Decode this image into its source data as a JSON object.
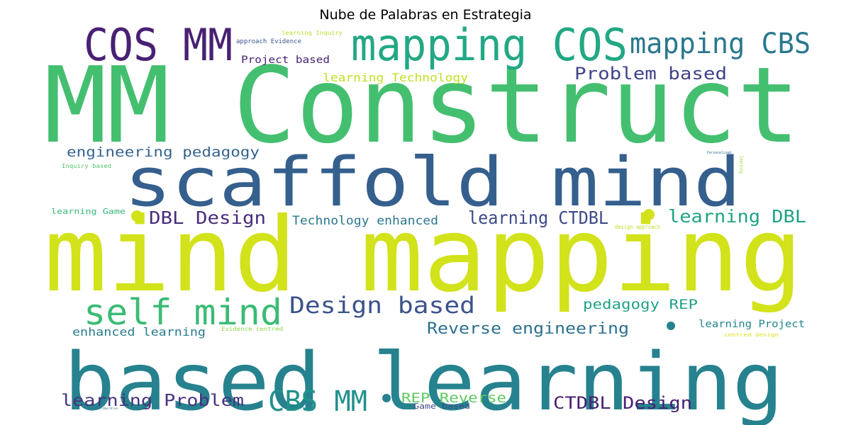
{
  "chart_data": {
    "type": "wordcloud",
    "title": "Nube de Palabras en Estrategia",
    "background": "#ffffff",
    "words": [
      {
        "text": "MM Construct",
        "color": "#44bf70"
      },
      {
        "text": "mind mapping",
        "color": "#d2e21b"
      },
      {
        "text": "based learning",
        "color": "#26828e"
      },
      {
        "text": "scaffold mind",
        "color": "#355f8d"
      },
      {
        "text": "mapping COS",
        "color": "#22a884"
      },
      {
        "text": "COS MM",
        "color": "#482173"
      },
      {
        "text": "mapping CBS",
        "color": "#2a788e"
      },
      {
        "text": "self mind",
        "color": "#3bbb75"
      },
      {
        "text": "Design based",
        "color": "#3b528b"
      },
      {
        "text": "CBS MM",
        "color": "#21918c"
      },
      {
        "text": "Problem based",
        "color": "#414487"
      },
      {
        "text": "learning CTDBL",
        "color": "#3e4a89"
      },
      {
        "text": "learning DBL",
        "color": "#20a386"
      },
      {
        "text": "DBL Design",
        "color": "#472d7b"
      },
      {
        "text": "Reverse engineering",
        "color": "#2c718e"
      },
      {
        "text": "CTDBL Design",
        "color": "#481f70"
      },
      {
        "text": "learning Problem",
        "color": "#46337e"
      },
      {
        "text": "engineering pedagogy",
        "color": "#33638d"
      },
      {
        "text": "pedagogy REP",
        "color": "#1fa187"
      },
      {
        "text": "REP Reverse",
        "color": "#5ec962"
      },
      {
        "text": "learning Technology",
        "color": "#c2df23"
      },
      {
        "text": "Technology enhanced",
        "color": "#2a788e"
      },
      {
        "text": "enhanced learning",
        "color": "#287c8e"
      },
      {
        "text": "Project based",
        "color": "#482475"
      },
      {
        "text": "learning Project",
        "color": "#24868e"
      },
      {
        "text": "Game based",
        "color": "#3e4989"
      },
      {
        "text": "learning Game",
        "color": "#35b779"
      },
      {
        "text": "Inquiry based",
        "color": "#50c46a"
      },
      {
        "text": "approach Evidence",
        "color": "#39568c"
      },
      {
        "text": "learning Inquiry",
        "color": "#b5de2b"
      },
      {
        "text": "Evidence centred",
        "color": "#8fd744"
      },
      {
        "text": "design approach",
        "color": "#bddf26"
      },
      {
        "text": "centred design",
        "color": "#dde318"
      },
      {
        "text": "Personalized",
        "color": "#2d708e"
      },
      {
        "text": "Collaborative",
        "color": "#2f6c8e"
      },
      {
        "text": "learning",
        "color": "#9bd93c"
      }
    ],
    "fragments": [
      {
        "text": "g",
        "color": "#d2e21b"
      },
      {
        "text": "g",
        "color": "#26828e"
      },
      {
        "text": "y",
        "color": "#33638d"
      },
      {
        "text": "g",
        "color": "#3b528b"
      }
    ],
    "dots": [
      {
        "color": "#d2e21b"
      },
      {
        "color": "#d2e21b"
      },
      {
        "color": "#26828e"
      },
      {
        "color": "#26828e"
      }
    ]
  }
}
